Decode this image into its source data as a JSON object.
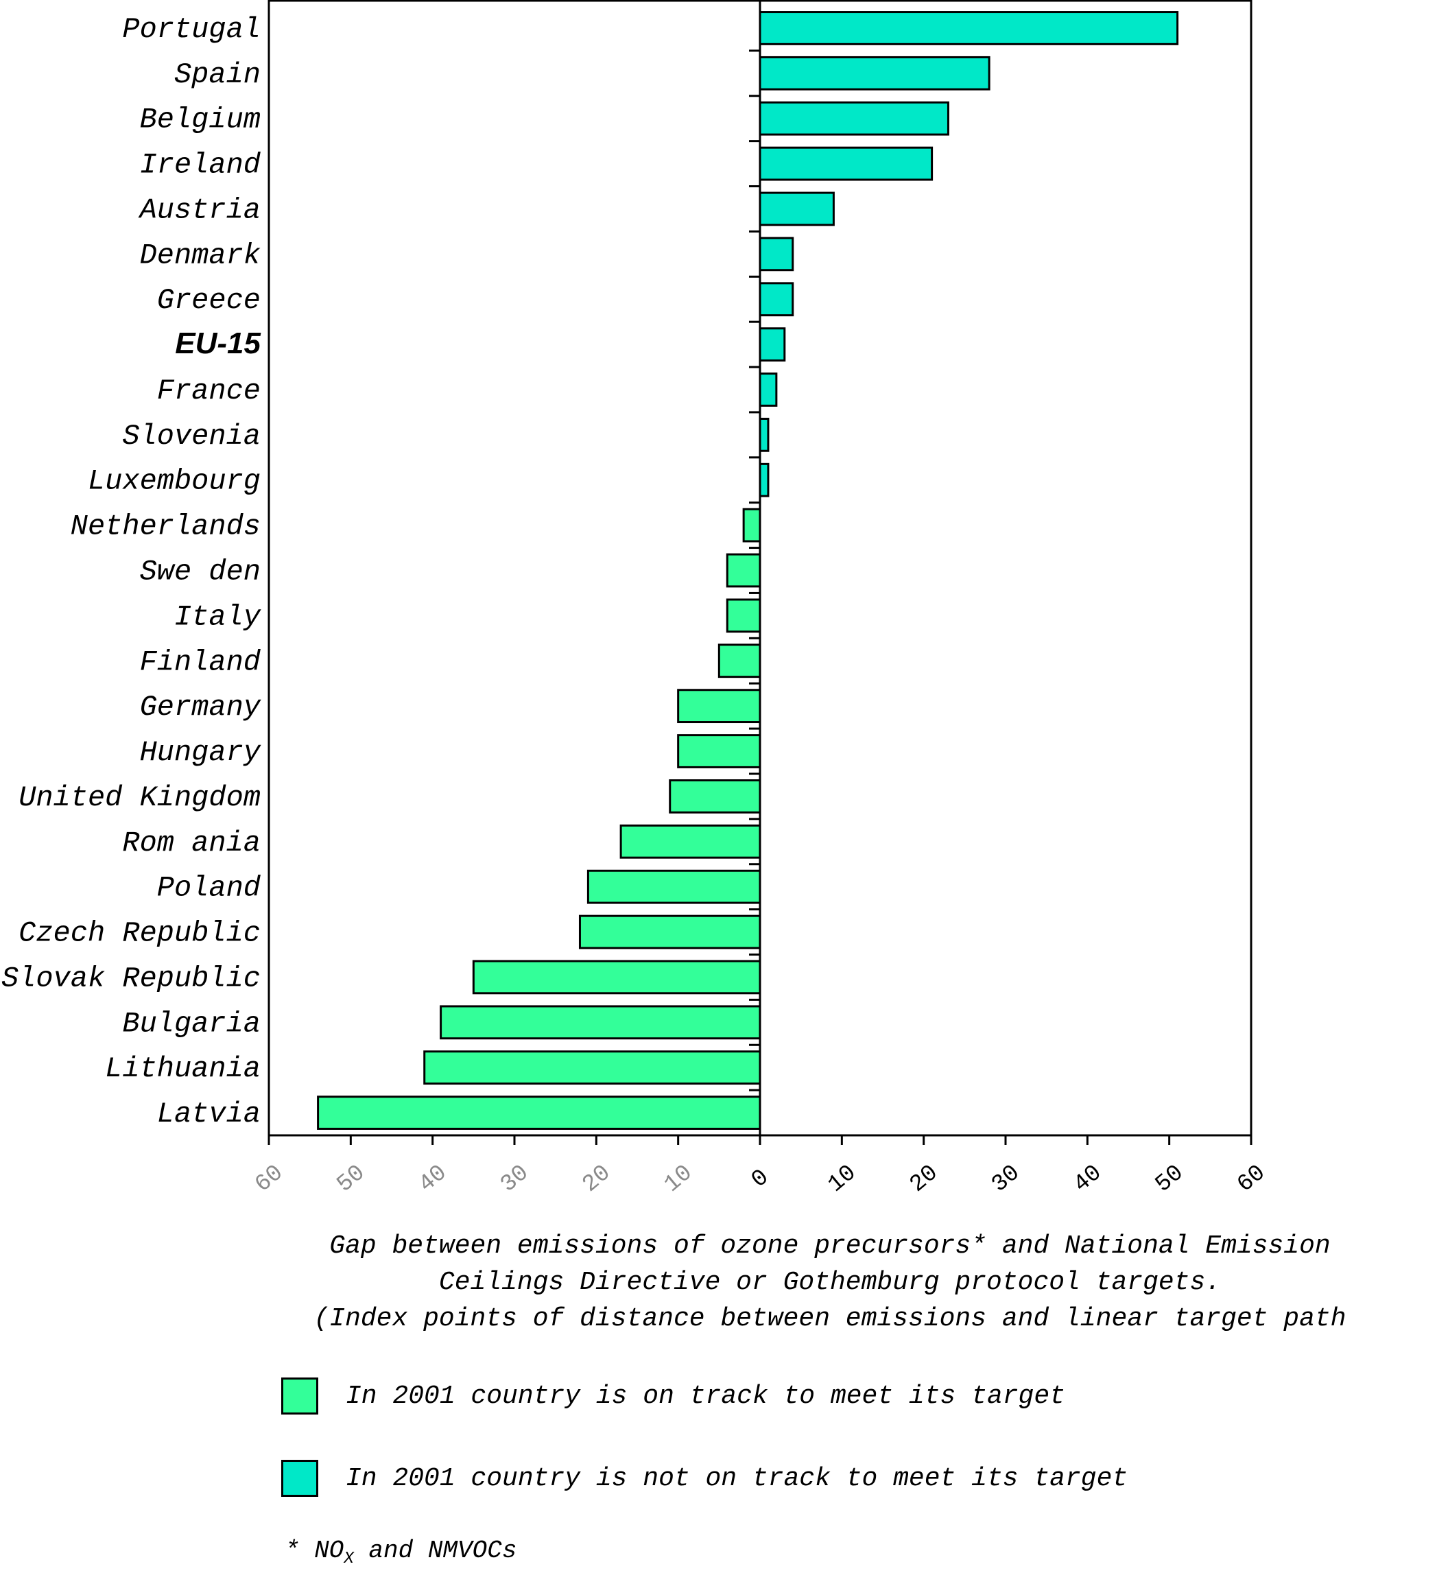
{
  "chart_data": {
    "type": "bar",
    "orientation": "horizontal",
    "categories": [
      "Portugal",
      "Spain",
      "Belgium",
      "Ireland",
      "Austria",
      "Denmark",
      "Greece",
      "EU-15",
      "France",
      "Slovenia",
      "Luxembourg",
      "Netherlands",
      "Swe den",
      "Italy",
      "Finland",
      "Germany",
      "Hungary",
      "United Kingdom",
      "Rom ania",
      "Poland",
      "Czech Republic",
      "Slovak Republic",
      "Bulgaria",
      "Lithuania",
      "Latvia"
    ],
    "values": [
      51,
      28,
      23,
      21,
      9,
      4,
      4,
      3,
      2,
      1,
      1,
      -2,
      -4,
      -4,
      -5,
      -10,
      -10,
      -11,
      -17,
      -21,
      -22,
      -35,
      -39,
      -41,
      -54
    ],
    "bold_category": "EU-15",
    "xlim": [
      -60,
      60
    ],
    "x_ticks": [
      "60",
      "50",
      "40",
      "30",
      "20",
      "10",
      "0",
      "10",
      "20",
      "30",
      "40",
      "50",
      "60"
    ],
    "title": "",
    "xlabel": "",
    "ylabel": "",
    "colors": {
      "on_track": "#33ff99",
      "not_on_track": "#00e8c8",
      "axis": "#000000"
    }
  },
  "caption": {
    "line1": "Gap between emissions of ozone precursors* and National Emission",
    "line2": "Ceilings Directive or Gothemburg protocol targets.",
    "line3": "(Index points of distance between emissions and linear target path"
  },
  "legend": {
    "on_track": "In 2001 country is on track to meet its target",
    "not_on_track": "In 2001 country is not on track to meet its target"
  },
  "footnote": {
    "prefix": "* NO",
    "sub": "X",
    "suffix": " and NMVOCs"
  }
}
